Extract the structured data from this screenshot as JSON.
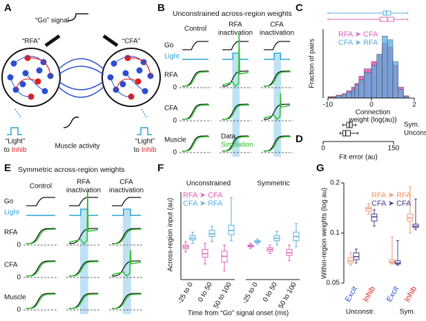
{
  "panel_labels": [
    "A",
    "B",
    "C",
    "D",
    "E",
    "F",
    "G"
  ],
  "A": {
    "go_signal": "“Go” signal",
    "left_region": "“RFA”",
    "right_region": "“CFA”",
    "light": "“Light”",
    "to": "to",
    "inhib": "Inhib",
    "muscle": "Muscle activity"
  },
  "B": {
    "title": "Unconstrained across-region weights",
    "columns": [
      [
        "Control"
      ],
      [
        "RFA",
        "inactivation"
      ],
      [
        "CFA",
        "inactivation"
      ]
    ],
    "rows": [
      "Go",
      "Light",
      "RFA",
      "CFA",
      "Muscle"
    ],
    "zero": "0",
    "legend": [
      "Data",
      "Simulation"
    ]
  },
  "E": {
    "title": "Symmetric across-region weights",
    "columns": [
      [
        "Control"
      ],
      [
        "RFA",
        "inactivation"
      ],
      [
        "CFA",
        "inactivation"
      ]
    ],
    "rows": [
      "Go",
      "Light",
      "RFA",
      "CFA",
      "Muscle"
    ],
    "zero": "0"
  },
  "chart_data": [
    {
      "type": "histogram",
      "ylabel": "Fraction of pairs",
      "xlabel": [
        "Connection",
        "weight (log(au))"
      ],
      "xlim": [
        -10,
        2
      ],
      "xticks": [
        -10,
        0,
        2
      ],
      "ylim": [
        0,
        0.09
      ],
      "bins": [
        -10,
        -6,
        -4,
        -3,
        -2,
        -1.5,
        -1,
        -0.5,
        0,
        0.25,
        0.5,
        0.75,
        1,
        1.25,
        1.5,
        1.75
      ],
      "series": [
        {
          "name": "RFA ➤ CFA",
          "color": "#e060b8",
          "values": [
            0.002,
            0.004,
            0.006,
            0.01,
            0.015,
            0.02,
            0.03,
            0.04,
            0.05,
            0.06,
            0.075,
            0.07,
            0.045,
            0.015,
            0.003
          ],
          "box": {
            "min": -10,
            "q1": 0.4,
            "median": 0.75,
            "q3": 1.05,
            "max": 1.7
          }
        },
        {
          "name": "CFA ➤ RFA",
          "color": "#5aaee0",
          "values": [
            0.001,
            0.003,
            0.005,
            0.008,
            0.012,
            0.018,
            0.025,
            0.035,
            0.045,
            0.06,
            0.085,
            0.08,
            0.05,
            0.012,
            0.002
          ],
          "box": {
            "min": -10,
            "q1": 0.55,
            "median": 0.7,
            "q3": 0.9,
            "max": 1.7
          }
        }
      ]
    },
    {
      "type": "boxplot",
      "xlabel": "Fit error (au)",
      "xlim": [
        0,
        150
      ],
      "xticks": [
        0,
        150
      ],
      "categories": [
        "Sym.",
        "Unconstr."
      ],
      "color": "#222",
      "values": [
        {
          "min": 42,
          "q1": 50,
          "median": 56,
          "q3": 62,
          "max": 70
        },
        {
          "min": 36,
          "q1": 42,
          "median": 48,
          "q3": 58,
          "max": 74
        }
      ]
    },
    {
      "type": "boxplot",
      "ylabel": "Across-region input (au)",
      "xlabel": "Time from “Go” signal onset (ms)",
      "groups": [
        "Unconstrained",
        "Symmetric"
      ],
      "categories": [
        "-25 to 0",
        "0 to 50",
        "50 to 100",
        "-25 to 0",
        "0 to 50",
        "50 to 100"
      ],
      "ylim": [
        0,
        1
      ],
      "series": [
        {
          "name": "RFA ➤ CFA",
          "color": "#e060b8",
          "values": [
            {
              "min": 0.32,
              "q1": 0.36,
              "median": 0.38,
              "q3": 0.4,
              "max": 0.44
            },
            {
              "min": 0.18,
              "q1": 0.26,
              "median": 0.3,
              "q3": 0.35,
              "max": 0.42
            },
            {
              "min": 0.1,
              "q1": 0.2,
              "median": 0.27,
              "q3": 0.33,
              "max": 0.4
            },
            {
              "min": 0.36,
              "q1": 0.38,
              "median": 0.39,
              "q3": 0.4,
              "max": 0.42
            },
            {
              "min": 0.3,
              "q1": 0.33,
              "median": 0.35,
              "q3": 0.37,
              "max": 0.4
            },
            {
              "min": 0.22,
              "q1": 0.28,
              "median": 0.31,
              "q3": 0.35,
              "max": 0.4
            }
          ]
        },
        {
          "name": "CFA ➤ RFA",
          "color": "#5aaee0",
          "values": [
            {
              "min": 0.42,
              "q1": 0.46,
              "median": 0.48,
              "q3": 0.51,
              "max": 0.55
            },
            {
              "min": 0.44,
              "q1": 0.5,
              "median": 0.53,
              "q3": 0.57,
              "max": 0.62
            },
            {
              "min": 0.45,
              "q1": 0.52,
              "median": 0.57,
              "q3": 0.63,
              "max": 0.95
            },
            {
              "min": 0.41,
              "q1": 0.43,
              "median": 0.44,
              "q3": 0.45,
              "max": 0.47
            },
            {
              "min": 0.4,
              "q1": 0.45,
              "median": 0.48,
              "q3": 0.51,
              "max": 0.56
            },
            {
              "min": 0.38,
              "q1": 0.45,
              "median": 0.5,
              "q3": 0.55,
              "max": 0.65
            }
          ]
        }
      ]
    },
    {
      "type": "boxplot",
      "ylabel": "Within-region weights (log au)",
      "log_scale": true,
      "ylim": [
        0.05,
        0.2
      ],
      "yticks": [
        0.05,
        0.1,
        0.2
      ],
      "groups": [
        "Unconstr.",
        "Sym."
      ],
      "categories": [
        "Excit",
        "Inhib",
        "Excit",
        "Inhib"
      ],
      "category_colors": [
        "#2a4fcf",
        "#d62020",
        "#2a4fcf",
        "#d62020"
      ],
      "series": [
        {
          "name": "RFA ➤ RFA",
          "color": "#f0956a",
          "values": [
            {
              "min": 0.064,
              "q1": 0.066,
              "median": 0.068,
              "q3": 0.071,
              "max": 0.076
            },
            {
              "min": 0.13,
              "q1": 0.135,
              "median": 0.14,
              "q3": 0.143,
              "max": 0.15
            },
            {
              "min": 0.065,
              "q1": 0.066,
              "median": 0.067,
              "q3": 0.069,
              "max": 0.095
            },
            {
              "min": 0.1,
              "q1": 0.118,
              "median": 0.123,
              "q3": 0.13,
              "max": 0.19
            }
          ]
        },
        {
          "name": "CFA ➤ CFA",
          "color": "#4a3a8c",
          "values": [
            {
              "min": 0.066,
              "q1": 0.069,
              "median": 0.072,
              "q3": 0.076,
              "max": 0.08
            },
            {
              "min": 0.11,
              "q1": 0.118,
              "median": 0.125,
              "q3": 0.13,
              "max": 0.138
            },
            {
              "min": 0.064,
              "q1": 0.065,
              "median": 0.066,
              "q3": 0.068,
              "max": 0.09
            },
            {
              "min": 0.105,
              "q1": 0.108,
              "median": 0.11,
              "q3": 0.113,
              "max": 0.16
            }
          ]
        }
      ]
    }
  ]
}
